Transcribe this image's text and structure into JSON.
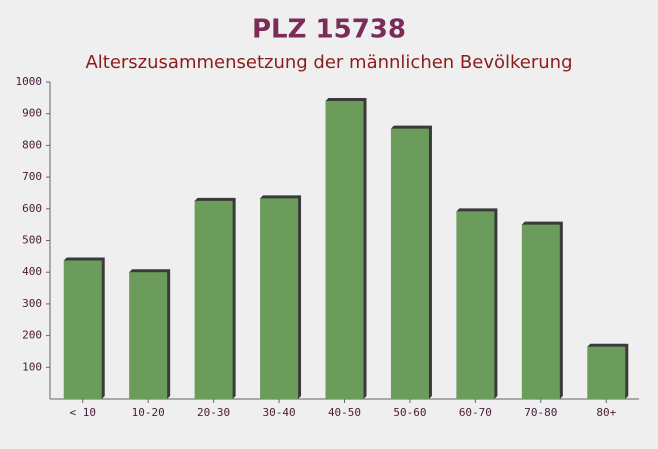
{
  "chart_data": {
    "type": "bar",
    "title": "PLZ 15738",
    "subtitle": "Alterszusammensetzung der männlichen Bevölkerung",
    "categories": [
      "< 10",
      "10-20",
      "20-30",
      "30-40",
      "40-50",
      "50-60",
      "60-70",
      "70-80",
      "80+"
    ],
    "values": [
      437,
      400,
      625,
      633,
      940,
      853,
      592,
      550,
      165
    ],
    "color": "#6b9c5c",
    "ylim": [
      0,
      1000
    ],
    "yticks": [
      100,
      200,
      300,
      400,
      500,
      600,
      700,
      800,
      900,
      1000
    ],
    "grid": false
  }
}
